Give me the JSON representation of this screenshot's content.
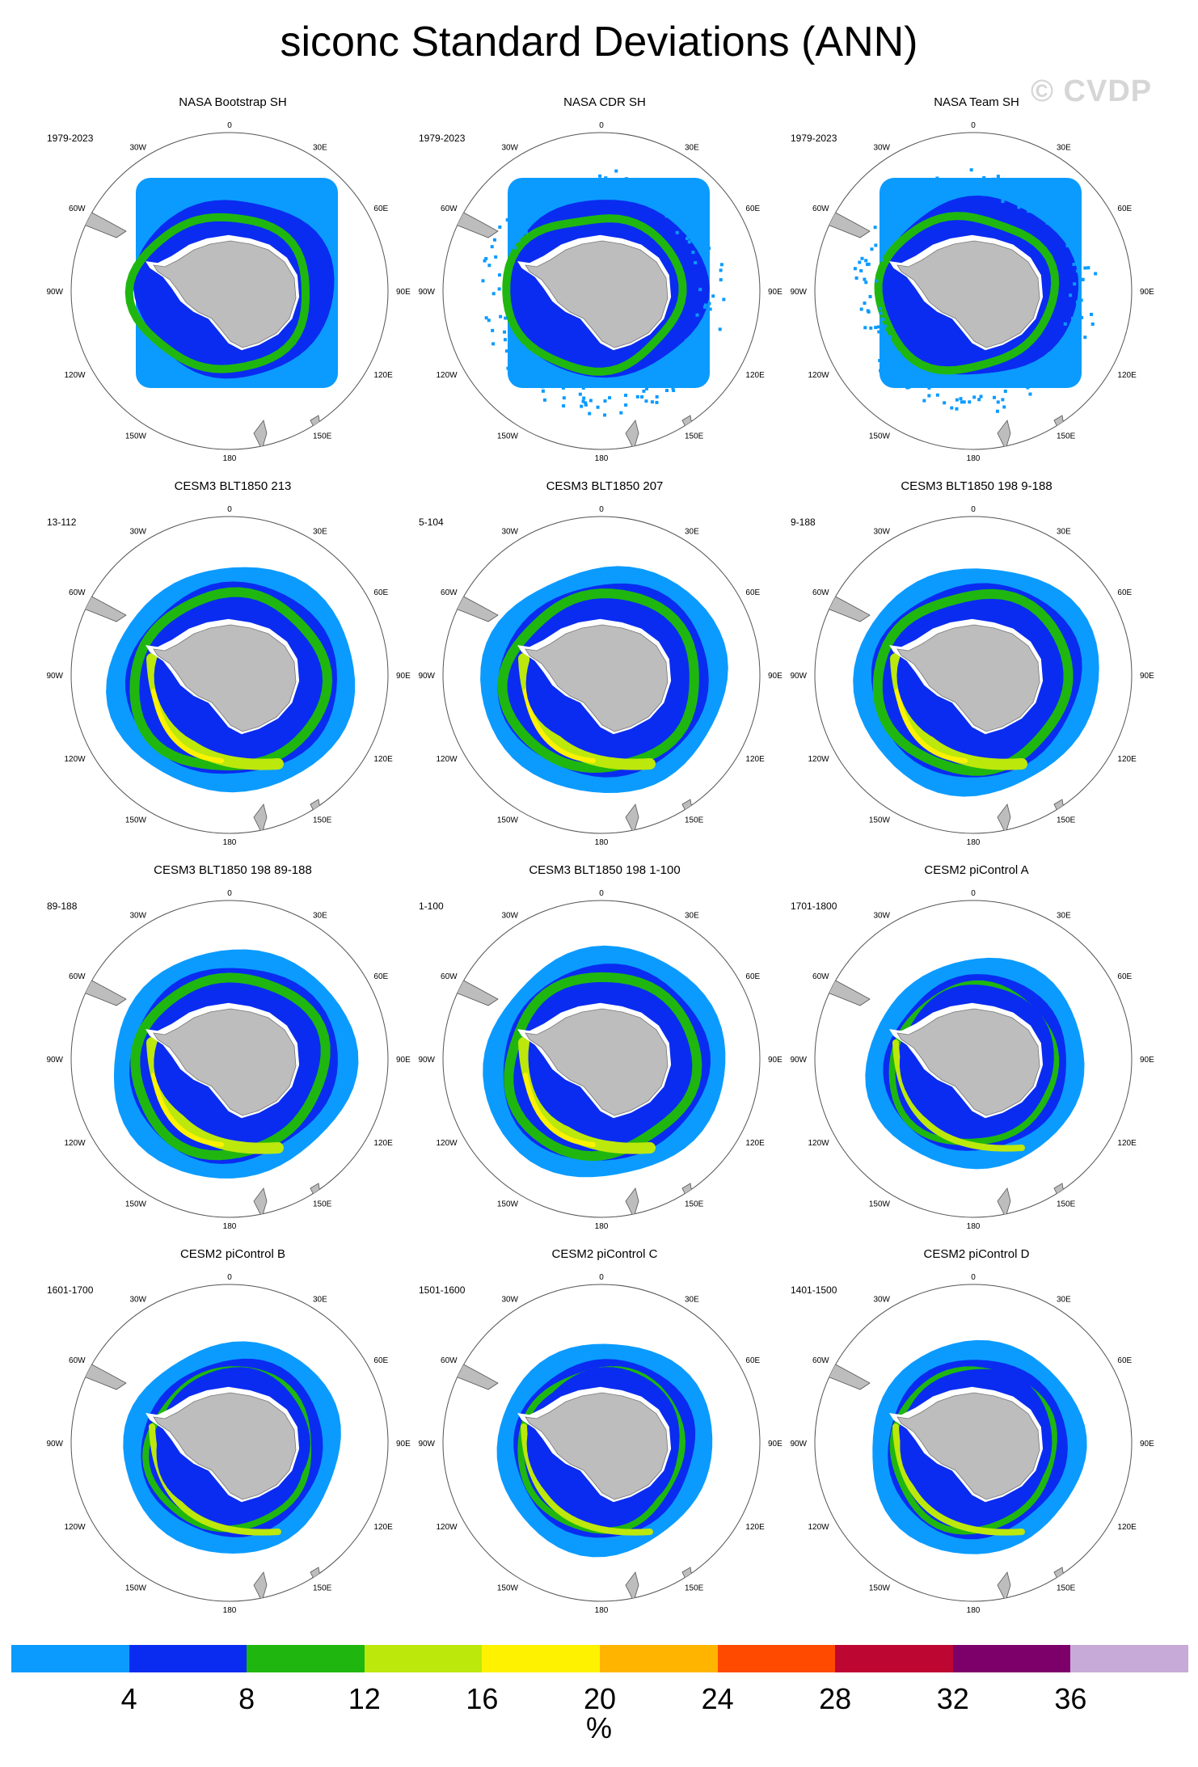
{
  "title": "siconc Standard Deviations (ANN)",
  "watermark": "© CVDP",
  "longitude_labels": [
    "0",
    "30E",
    "60E",
    "90E",
    "120E",
    "150E",
    "180",
    "150W",
    "120W",
    "90W",
    "60W",
    "30W"
  ],
  "panels": [
    {
      "name": "NASA Bootstrap SH",
      "years": "1979-2023",
      "kind": "obs"
    },
    {
      "name": "NASA CDR SH",
      "years": "1979-2023",
      "kind": "obs-speckle"
    },
    {
      "name": "NASA Team SH",
      "years": "1979-2023",
      "kind": "obs-speckle"
    },
    {
      "name": "CESM3 BLT1850 213",
      "years": "13-112",
      "kind": "model"
    },
    {
      "name": "CESM3 BLT1850 207",
      "years": "5-104",
      "kind": "model"
    },
    {
      "name": "CESM3 BLT1850 198 9-188",
      "years": "9-188",
      "kind": "model"
    },
    {
      "name": "CESM3 BLT1850 198 89-188",
      "years": "89-188",
      "kind": "model"
    },
    {
      "name": "CESM3 BLT1850 198 1-100",
      "years": "1-100",
      "kind": "model"
    },
    {
      "name": "CESM2 piControl A",
      "years": "1701-1800",
      "kind": "model-small"
    },
    {
      "name": "CESM2 piControl B",
      "years": "1601-1700",
      "kind": "model-small"
    },
    {
      "name": "CESM2 piControl C",
      "years": "1501-1600",
      "kind": "model-small"
    },
    {
      "name": "CESM2 piControl D",
      "years": "1401-1500",
      "kind": "model-small"
    }
  ],
  "colorbar": {
    "colors": [
      "#0b9bff",
      "#0a2cf0",
      "#1fb70f",
      "#bde80c",
      "#fff200",
      "#ffb400",
      "#ff4a00",
      "#be0632",
      "#7d006a",
      "#c8aad8"
    ],
    "labels": [
      "4",
      "8",
      "12",
      "16",
      "20",
      "24",
      "28",
      "32",
      "36"
    ],
    "units": "%"
  },
  "land_color": "#bdbdbd"
}
